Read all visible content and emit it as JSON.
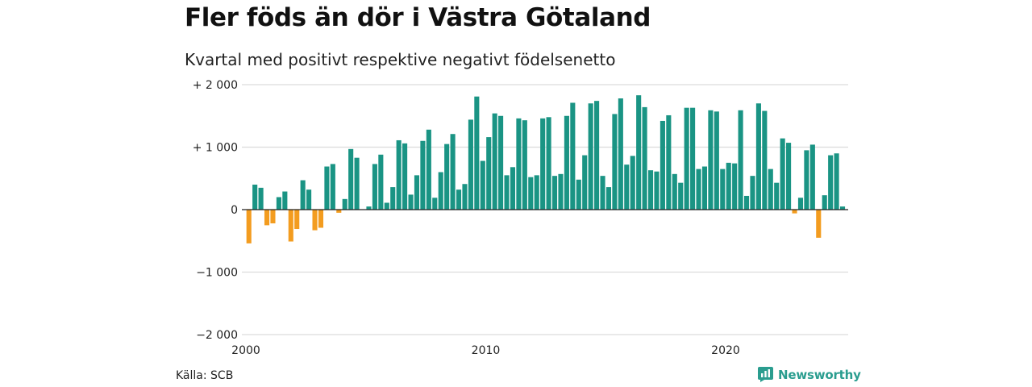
{
  "title": "Fler föds än dör i Västra Götaland",
  "subtitle": "Kvartal med positivt respektive negativt födelsenetto",
  "source": "Källa: SCB",
  "brand": "Newsworthy",
  "colors": {
    "positive": "#1a9484",
    "negative": "#f39c1f",
    "grid": "#dcdcdc",
    "brand": "#2a9d8f"
  },
  "chart_data": {
    "type": "bar",
    "title": "Fler föds än dör i Västra Götaland",
    "subtitle": "Kvartal med positivt respektive negativt födelsenetto",
    "xlabel": "",
    "ylabel": "",
    "x_start": "2000 Q1",
    "frequency": "quarterly",
    "ylim": [
      -2000,
      2000
    ],
    "y_ticks": [
      {
        "value": 2000,
        "label": "+ 2 000"
      },
      {
        "value": 1000,
        "label": "+ 1 000"
      },
      {
        "value": 0,
        "label": "0"
      },
      {
        "value": -1000,
        "label": "−1 000"
      },
      {
        "value": -2000,
        "label": "−2 000"
      }
    ],
    "x_ticks": [
      {
        "value": 2000,
        "label": "2000"
      },
      {
        "value": 2010,
        "label": "2010"
      },
      {
        "value": 2020,
        "label": "2020"
      }
    ],
    "grid": true,
    "legend": "none",
    "values": [
      -540,
      400,
      350,
      -250,
      -220,
      200,
      290,
      -510,
      -310,
      470,
      320,
      -330,
      -290,
      690,
      730,
      -50,
      170,
      970,
      830,
      0,
      50,
      730,
      880,
      110,
      360,
      1110,
      1060,
      240,
      550,
      1100,
      1280,
      190,
      600,
      1050,
      1210,
      320,
      410,
      1440,
      1810,
      780,
      1160,
      1540,
      1500,
      550,
      680,
      1460,
      1430,
      520,
      550,
      1460,
      1480,
      540,
      570,
      1500,
      1710,
      480,
      870,
      1700,
      1740,
      540,
      360,
      1530,
      1780,
      720,
      860,
      1830,
      1640,
      630,
      610,
      1420,
      1510,
      570,
      430,
      1630,
      1630,
      650,
      690,
      1590,
      1570,
      650,
      750,
      740,
      1590,
      220,
      540,
      1700,
      1580,
      650,
      430,
      1140,
      1070,
      -60,
      190,
      950,
      1040,
      -450,
      230,
      870,
      900,
      50
    ]
  }
}
